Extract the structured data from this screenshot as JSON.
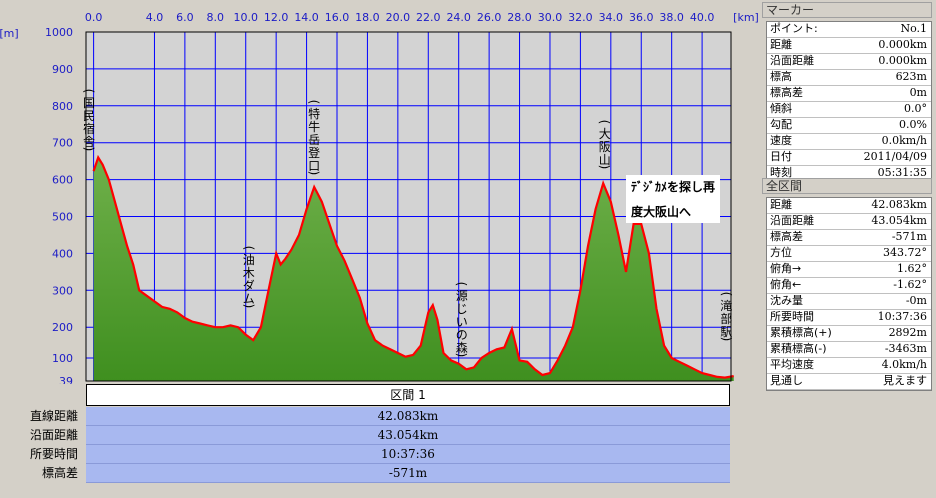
{
  "chart_data": {
    "type": "area",
    "x_unit": "[km]",
    "y_unit": "[m]",
    "xlim": [
      -0.5,
      41.9
    ],
    "ylim": [
      39,
      1000
    ],
    "x_ticks": [
      "0.0",
      "4.0",
      "6.0",
      "8.0",
      "10.0",
      "12.0",
      "14.0",
      "16.0",
      "18.0",
      "20.0",
      "22.0",
      "24.0",
      "26.0",
      "28.0",
      "30.0",
      "32.0",
      "34.0",
      "36.0",
      "38.0",
      "40.0"
    ],
    "x_tick_values": [
      0,
      4,
      6,
      8,
      10,
      12,
      14,
      16,
      18,
      20,
      22,
      24,
      26,
      28,
      30,
      32,
      34,
      36,
      38,
      40
    ],
    "y_ticks": [
      "1000",
      "900",
      "800",
      "700",
      "600",
      "500",
      "400",
      "300",
      "200",
      "100",
      "39"
    ],
    "y_tick_values": [
      1000,
      900,
      800,
      700,
      600,
      500,
      400,
      300,
      200,
      100,
      39
    ],
    "grid": true,
    "series": [
      {
        "x": [
          0,
          0.3,
          0.6,
          1.0,
          1.4,
          1.8,
          2.2,
          2.6,
          3.0,
          3.5,
          4.0,
          4.5,
          5.0,
          5.5,
          6.0,
          6.5,
          7.0,
          7.5,
          8.0,
          8.5,
          9.0,
          9.5,
          10.0,
          10.5,
          11.0,
          11.5,
          12.0,
          12.3,
          12.6,
          13.0,
          13.5,
          14.0,
          14.5,
          15.0,
          15.5,
          16.0,
          16.5,
          17.0,
          17.5,
          18.0,
          18.5,
          19.0,
          19.5,
          20.0,
          20.5,
          21.0,
          21.5,
          22.0,
          22.3,
          22.6,
          23.0,
          23.5,
          24.0,
          24.5,
          25.0,
          25.5,
          26.0,
          26.5,
          27.0,
          27.5,
          28.0,
          28.5,
          29.0,
          29.5,
          30.0,
          30.5,
          31.0,
          31.5,
          32.0,
          32.5,
          33.0,
          33.5,
          34.0,
          34.5,
          35.0,
          35.5,
          36.0,
          36.5,
          37.0,
          37.5,
          38.0,
          38.5,
          39.0,
          39.5,
          40.0,
          40.5,
          41.0,
          41.5,
          42.08
        ],
        "y": [
          623,
          660,
          640,
          600,
          540,
          480,
          420,
          370,
          300,
          285,
          270,
          255,
          250,
          240,
          225,
          215,
          210,
          205,
          200,
          200,
          205,
          200,
          180,
          165,
          200,
          300,
          400,
          370,
          385,
          410,
          450,
          520,
          580,
          540,
          480,
          420,
          380,
          330,
          280,
          210,
          165,
          150,
          140,
          130,
          120,
          125,
          150,
          240,
          260,
          220,
          130,
          110,
          85,
          70,
          75,
          100,
          130,
          140,
          145,
          195,
          110,
          90,
          70,
          55,
          60,
          110,
          150,
          200,
          300,
          420,
          520,
          590,
          540,
          450,
          350,
          480,
          480,
          400,
          250,
          150,
          100,
          90,
          80,
          70,
          60,
          55,
          50,
          48,
          52
        ]
      }
    ],
    "annotations": [
      {
        "text": "国民宿舎",
        "x": -0.3
      },
      {
        "text": "特牛岳登口",
        "x": 14.5
      },
      {
        "text": "油木ダム",
        "x": 10.2
      },
      {
        "text": "大阪山",
        "x": 33.6
      },
      {
        "text": "源じいの森",
        "x": 24.2
      },
      {
        "text": "滝部駅",
        "x": 41.6
      }
    ],
    "callout": [
      "ﾃﾞｼﾞｶﾒを探し再",
      "度大阪山へ"
    ],
    "colors": {
      "fill": "#3f8f1f",
      "line": "#ff0000",
      "grid": "#0000ff",
      "axis_text": "#1b1bc6"
    }
  },
  "section": {
    "title": "区間 1",
    "rows": [
      {
        "label": "直線距離",
        "value": "42.083km"
      },
      {
        "label": "沿面距離",
        "value": "43.054km"
      },
      {
        "label": "所要時間",
        "value": "10:37:36"
      },
      {
        "label": "標高差",
        "value": "-571m"
      }
    ]
  },
  "marker_panel": {
    "title": "マーカー",
    "rows": [
      {
        "k": "ポイント:",
        "v": "No.1"
      },
      {
        "k": "距離",
        "v": "0.000km"
      },
      {
        "k": "沿面距離",
        "v": "0.000km"
      },
      {
        "k": "標高",
        "v": "623m"
      },
      {
        "k": "標高差",
        "v": "0m"
      },
      {
        "k": "傾斜",
        "v": "0.0°"
      },
      {
        "k": "勾配",
        "v": "0.0%"
      },
      {
        "k": "速度",
        "v": "0.0km/h"
      },
      {
        "k": "日付",
        "v": "2011/04/09"
      },
      {
        "k": "時刻",
        "v": "05:31:35"
      }
    ]
  },
  "total_panel": {
    "title": "全区間",
    "rows": [
      {
        "k": "距離",
        "v": "42.083km"
      },
      {
        "k": "沿面距離",
        "v": "43.054km"
      },
      {
        "k": "標高差",
        "v": "-571m"
      },
      {
        "k": "方位",
        "v": "343.72°"
      },
      {
        "k": "俯角→",
        "v": "1.62°"
      },
      {
        "k": "俯角←",
        "v": "-1.62°"
      },
      {
        "k": "沈み量",
        "v": "-0m"
      },
      {
        "k": "所要時間",
        "v": "10:37:36"
      },
      {
        "k": "累積標高(+)",
        "v": "2892m"
      },
      {
        "k": "累積標高(-)",
        "v": "-3463m"
      },
      {
        "k": "平均速度",
        "v": "4.0km/h"
      },
      {
        "k": "見通し",
        "v": "見えます"
      }
    ]
  }
}
